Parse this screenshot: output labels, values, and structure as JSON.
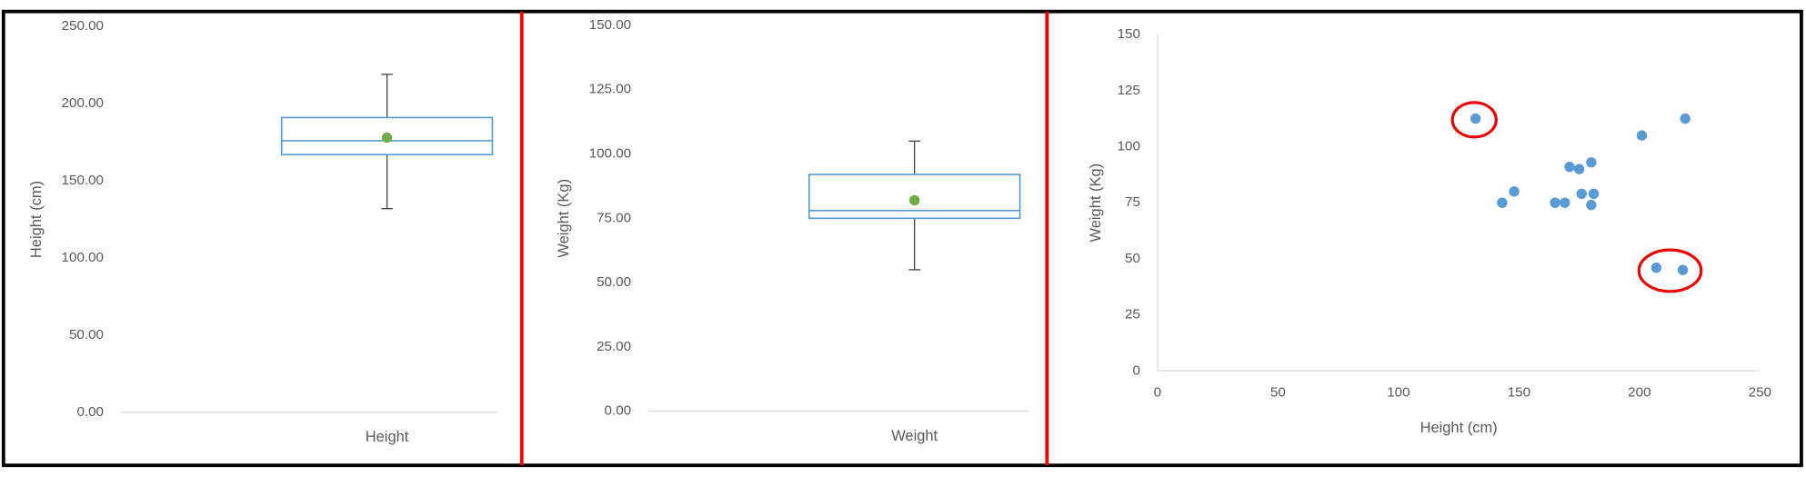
{
  "chart_data": [
    {
      "type": "box",
      "y_label": "Height (cm)",
      "categories": [
        "Height"
      ],
      "stats": {
        "min": 132,
        "q1": 167,
        "median": 176,
        "q3": 191,
        "max": 219,
        "mean": 178
      },
      "color": "#5b9bd5",
      "mean_color": "#70ad47",
      "ylim": [
        0,
        250
      ],
      "yticks": [
        {
          "value": 0,
          "label": "0.00"
        },
        {
          "value": 50,
          "label": "50.00"
        },
        {
          "value": 100,
          "label": "100.00"
        },
        {
          "value": 150,
          "label": "150.00"
        },
        {
          "value": 200,
          "label": "200.00"
        },
        {
          "value": 250,
          "label": "250.00"
        }
      ]
    },
    {
      "type": "box",
      "y_label": "Weight (Kg)",
      "categories": [
        "Weight"
      ],
      "stats": {
        "min": 55,
        "q1": 75,
        "median": 78,
        "q3": 92,
        "max": 105,
        "mean": 82
      },
      "color": "#5b9bd5",
      "mean_color": "#70ad47",
      "ylim": [
        0,
        150
      ],
      "yticks": [
        {
          "value": 0,
          "label": "0.00"
        },
        {
          "value": 25,
          "label": "25.00"
        },
        {
          "value": 50,
          "label": "50.00"
        },
        {
          "value": 75,
          "label": "75.00"
        },
        {
          "value": 100,
          "label": "100.00"
        },
        {
          "value": 125,
          "label": "125.00"
        },
        {
          "value": 150,
          "label": "150.00"
        }
      ]
    },
    {
      "type": "scatter",
      "x_label": "Height (cm)",
      "y_label": "Weight (Kg)",
      "color": "#5b9bd5",
      "x": [
        132,
        143,
        148,
        165,
        169,
        171,
        175,
        176,
        180,
        180,
        181,
        201,
        219,
        207,
        218
      ],
      "values": [
        112.5,
        75,
        80,
        75,
        75,
        91,
        90,
        79,
        93,
        74,
        79,
        105,
        112.5,
        46,
        45
      ],
      "xlim": [
        0,
        250
      ],
      "xticks": [
        0,
        50,
        100,
        150,
        200,
        250
      ],
      "ylim": [
        0,
        150
      ],
      "yticks": [
        0,
        25,
        50,
        75,
        100,
        125,
        150
      ]
    }
  ]
}
